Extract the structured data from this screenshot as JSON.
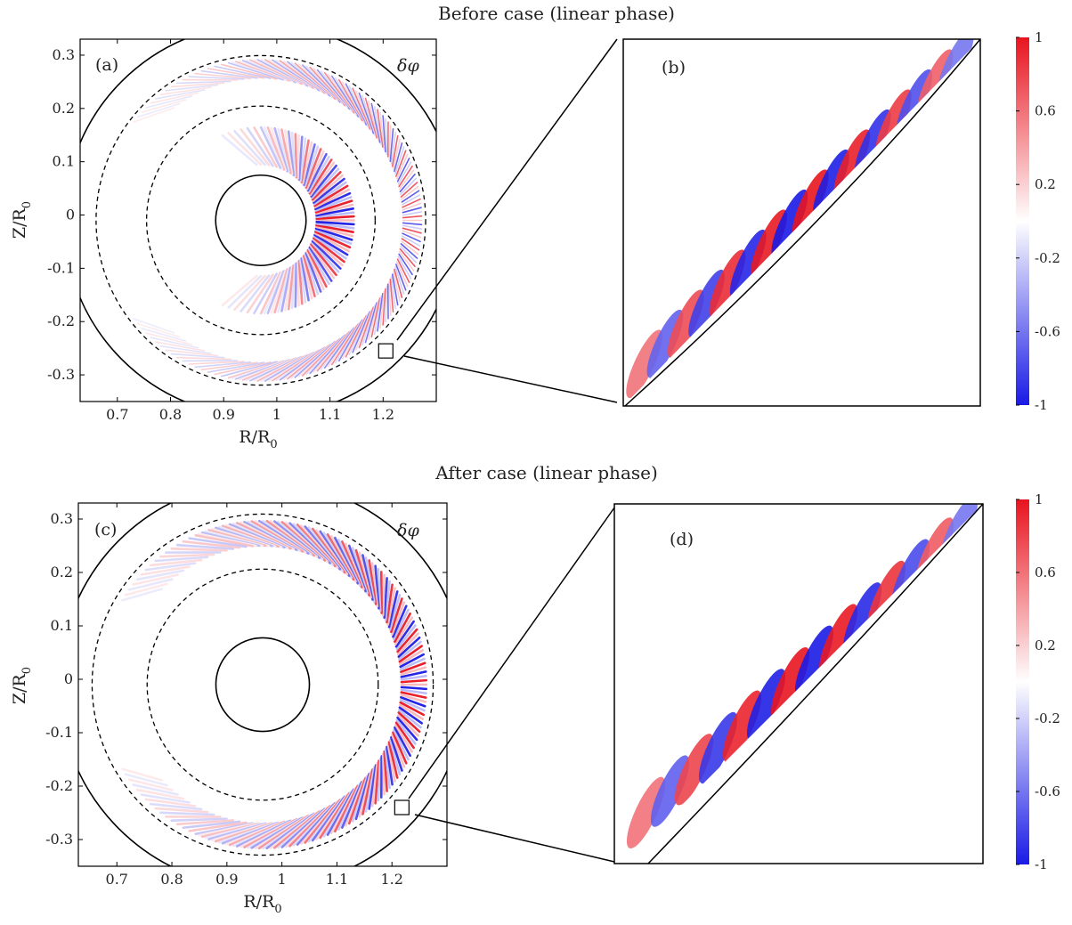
{
  "colors": {
    "positive": "#e8141f",
    "negative": "#1a1ae6",
    "zero": "#ffffff",
    "frame": "#000000"
  },
  "chart_data": [
    {
      "type": "heatmap",
      "panel": "(a)",
      "title": "Before case (linear phase)",
      "field_label": "δφ",
      "xlabel": "R/R0",
      "ylabel": "Z/R0",
      "xlim": [
        0.63,
        1.3
      ],
      "ylim": [
        -0.35,
        0.33
      ],
      "xticks": [
        "0.7",
        "0.8",
        "0.9",
        "1",
        "1.1",
        "1.2"
      ],
      "yticks": [
        "0.3",
        "0.2",
        "0.1",
        "0",
        "-0.1",
        "-0.2",
        "-0.3"
      ],
      "boundary": {
        "center_R": 0.97,
        "center_Z": -0.01,
        "outer_radius": 0.37,
        "inner_radius": 0.085
      },
      "dashed_radii": [
        0.215,
        0.31
      ],
      "mode_band": {
        "center_radius": 0.14,
        "width": 0.07,
        "peak_angle_deg": 0
      },
      "outer_band": {
        "center_radius": 0.285,
        "width": 0.035
      },
      "zoom_box": {
        "R": 1.205,
        "Z": -0.255
      }
    },
    {
      "type": "heatmap",
      "panel": "(b)",
      "description_of": "zoom of boxed region of (a)",
      "stripes": 16
    },
    {
      "type": "heatmap",
      "panel": "(c)",
      "title": "After case (linear phase)",
      "field_label": "δφ",
      "xlabel": "R/R0",
      "ylabel": "Z/R0",
      "xlim": [
        0.63,
        1.3
      ],
      "ylim": [
        -0.35,
        0.33
      ],
      "xticks": [
        "0.7",
        "0.8",
        "0.9",
        "1",
        "1.1",
        "1.2"
      ],
      "yticks": [
        "0.3",
        "0.2",
        "0.1",
        "0",
        "-0.1",
        "-0.2",
        "-0.3"
      ],
      "boundary": {
        "center_R": 0.965,
        "center_Z": -0.01,
        "outer_radius": 0.37,
        "inner_radius": 0.085
      },
      "dashed_radii": [
        0.21,
        0.31
      ],
      "outer_band": {
        "center_radius": 0.275,
        "width": 0.045
      },
      "zoom_box": {
        "R": 1.218,
        "Z": -0.24
      }
    },
    {
      "type": "heatmap",
      "panel": "(d)",
      "description_of": "zoom of boxed region of (c)",
      "stripes": 14
    }
  ],
  "colorbar": {
    "range": [
      -1,
      1
    ],
    "ticks": [
      "1",
      "0.6",
      "0.2",
      "-0.2",
      "-0.6",
      "-1"
    ]
  },
  "labels": {
    "title_top": "Before case (linear phase)",
    "title_bottom": "After case (linear phase)",
    "panel_a": "(a)",
    "panel_b": "(b)",
    "panel_c": "(c)",
    "panel_d": "(d)",
    "field": "δφ",
    "x_main": "R/R",
    "x_sub": "0",
    "y_main": "Z/R",
    "y_sub": "0"
  }
}
